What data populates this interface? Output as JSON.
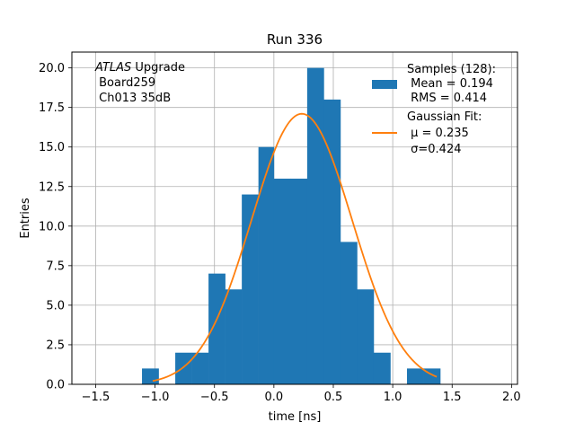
{
  "chart_data": {
    "type": "histogram",
    "title": "Run 336",
    "xlabel": "time [ns]",
    "ylabel": "Entries",
    "xlim": [
      -1.7,
      2.05
    ],
    "ylim": [
      0,
      21
    ],
    "grid": true,
    "x_ticks": [
      -1.5,
      -1.0,
      -0.5,
      0.0,
      0.5,
      1.0,
      1.5,
      2.0
    ],
    "x_tick_labels": [
      "−1.5",
      "−1.0",
      "−0.5",
      "0.0",
      "0.5",
      "1.0",
      "1.5",
      "2.0"
    ],
    "y_ticks": [
      0,
      2.5,
      5,
      7.5,
      10,
      12.5,
      15,
      17.5,
      20
    ],
    "y_tick_labels": [
      "0.0",
      "2.5",
      "5.0",
      "7.5",
      "10.0",
      "12.5",
      "15.0",
      "17.5",
      "20.0"
    ],
    "bin_edges": [
      -1.11,
      -0.97,
      -0.83,
      -0.69,
      -0.55,
      -0.41,
      -0.27,
      -0.13,
      0.0,
      0.14,
      0.28,
      0.42,
      0.56,
      0.7,
      0.84,
      0.98,
      1.12,
      1.26,
      1.4
    ],
    "bin_counts": [
      1,
      0,
      2,
      2,
      7,
      6,
      12,
      15,
      13,
      13,
      20,
      18,
      9,
      6,
      2,
      0,
      1,
      1
    ],
    "gaussian_fit": {
      "mu": 0.235,
      "sigma": 0.424,
      "amplitude": 17.1,
      "x_range": [
        -1.02,
        1.37
      ]
    },
    "annotation": {
      "line1_italic": "ATLAS",
      "line1_rest": " Upgrade",
      "line2": " Board259",
      "line3": " Ch013 35dB"
    },
    "legend": {
      "placement": "upper-right",
      "entries": [
        {
          "kind": "bar",
          "color": "#1f77b4",
          "lines": [
            "Samples (128):",
            " Mean = 0.194",
            " RMS = 0.414"
          ]
        },
        {
          "kind": "line",
          "color": "#ff7f0e",
          "lines": [
            "Gaussian Fit:",
            " μ = 0.235",
            " σ=0.424"
          ]
        }
      ]
    },
    "colors": {
      "histogram": "#1f77b4",
      "fit": "#ff7f0e",
      "grid": "#b0b0b0"
    }
  }
}
